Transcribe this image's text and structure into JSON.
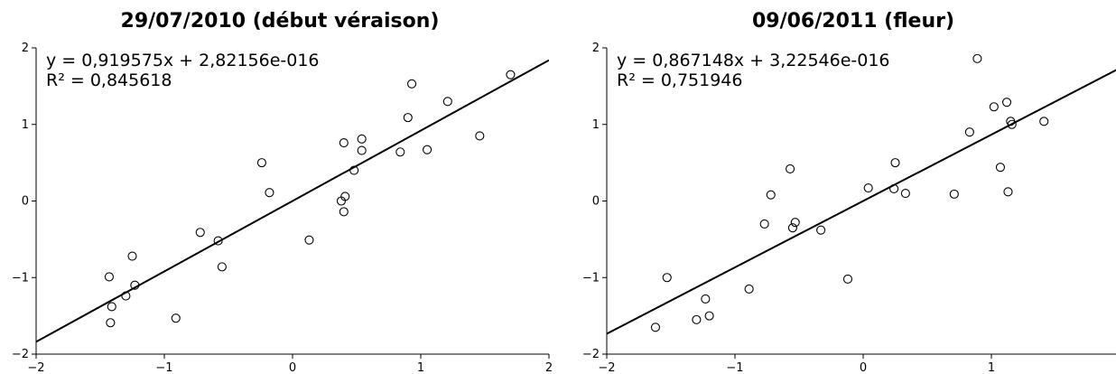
{
  "chart_data": [
    {
      "type": "scatter",
      "title": "29/07/2010 (début véraison)",
      "equation": "y = 0,919575x + 2,82156e-016",
      "r2_label": "R² = 0,845618",
      "fit": {
        "slope": 0.919575,
        "intercept": 2.82156e-16
      },
      "xlim": [
        -2,
        2
      ],
      "ylim": [
        -2,
        2
      ],
      "xticks": [
        -2,
        -1,
        0,
        1,
        2
      ],
      "yticks": [
        -2,
        -1,
        0,
        1,
        2
      ],
      "xtick_labels": [
        "−2",
        "−1",
        "0",
        "1",
        "2"
      ],
      "ytick_labels": [
        "−2",
        "−1",
        "0",
        "1",
        "2"
      ],
      "grid": false,
      "points": [
        {
          "x": -1.43,
          "y": -0.99
        },
        {
          "x": -1.42,
          "y": -1.59
        },
        {
          "x": -1.41,
          "y": -1.38
        },
        {
          "x": -1.3,
          "y": -1.24
        },
        {
          "x": -1.25,
          "y": -0.72
        },
        {
          "x": -1.23,
          "y": -1.1
        },
        {
          "x": -0.91,
          "y": -1.53
        },
        {
          "x": -0.72,
          "y": -0.41
        },
        {
          "x": -0.58,
          "y": -0.52
        },
        {
          "x": -0.55,
          "y": -0.86
        },
        {
          "x": -0.24,
          "y": 0.5
        },
        {
          "x": -0.18,
          "y": 0.11
        },
        {
          "x": 0.13,
          "y": -0.51
        },
        {
          "x": 0.38,
          "y": 0.0
        },
        {
          "x": 0.4,
          "y": -0.14
        },
        {
          "x": 0.4,
          "y": 0.76
        },
        {
          "x": 0.41,
          "y": 0.06
        },
        {
          "x": 0.48,
          "y": 0.4
        },
        {
          "x": 0.54,
          "y": 0.66
        },
        {
          "x": 0.54,
          "y": 0.81
        },
        {
          "x": 0.84,
          "y": 0.64
        },
        {
          "x": 0.9,
          "y": 1.09
        },
        {
          "x": 0.93,
          "y": 1.53
        },
        {
          "x": 1.05,
          "y": 0.67
        },
        {
          "x": 1.21,
          "y": 1.3
        },
        {
          "x": 1.46,
          "y": 0.85
        },
        {
          "x": 1.7,
          "y": 1.65
        }
      ]
    },
    {
      "type": "scatter",
      "title": "09/06/2011 (fleur)",
      "equation": "y = 0,867148x + 3,22546e-016",
      "r2_label": "R² = 0,751946",
      "fit": {
        "slope": 0.867148,
        "intercept": 3.22546e-16
      },
      "xlim": [
        -2,
        2
      ],
      "ylim": [
        -2,
        2
      ],
      "xticks": [
        -2,
        -1,
        0,
        1,
        2
      ],
      "yticks": [
        -2,
        -1,
        0,
        1,
        2
      ],
      "xtick_labels": [
        "−2",
        "−1",
        "0",
        "1",
        "2"
      ],
      "ytick_labels": [
        "−2",
        "−1",
        "0",
        "1",
        "2"
      ],
      "grid": false,
      "points": [
        {
          "x": -1.62,
          "y": -1.65
        },
        {
          "x": -1.53,
          "y": -1.0
        },
        {
          "x": -1.3,
          "y": -1.55
        },
        {
          "x": -1.23,
          "y": -1.28
        },
        {
          "x": -1.2,
          "y": -1.5
        },
        {
          "x": -0.89,
          "y": -1.15
        },
        {
          "x": -0.77,
          "y": -0.3
        },
        {
          "x": -0.72,
          "y": 0.08
        },
        {
          "x": -0.57,
          "y": 0.42
        },
        {
          "x": -0.55,
          "y": -0.35
        },
        {
          "x": -0.53,
          "y": -0.28
        },
        {
          "x": -0.33,
          "y": -0.38
        },
        {
          "x": -0.12,
          "y": -1.02
        },
        {
          "x": 0.04,
          "y": 0.17
        },
        {
          "x": 0.24,
          "y": 0.16
        },
        {
          "x": 0.25,
          "y": 0.5
        },
        {
          "x": 0.33,
          "y": 0.1
        },
        {
          "x": 0.71,
          "y": 0.09
        },
        {
          "x": 0.83,
          "y": 0.9
        },
        {
          "x": 0.89,
          "y": 1.86
        },
        {
          "x": 1.02,
          "y": 1.23
        },
        {
          "x": 1.07,
          "y": 0.44
        },
        {
          "x": 1.12,
          "y": 1.29
        },
        {
          "x": 1.13,
          "y": 0.12
        },
        {
          "x": 1.15,
          "y": 1.04
        },
        {
          "x": 1.16,
          "y": 1.0
        },
        {
          "x": 1.41,
          "y": 1.04
        }
      ]
    }
  ]
}
